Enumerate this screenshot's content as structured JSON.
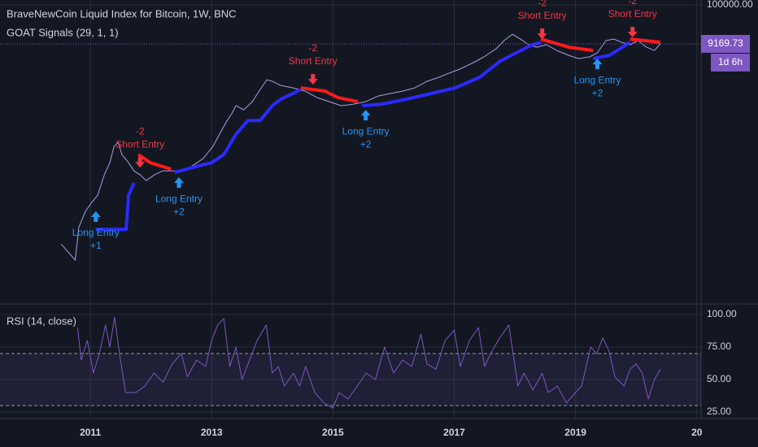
{
  "chart_data": [
    {
      "type": "line",
      "title": "BraveNewCoin Liquid Index for Bitcoin, 1W, BNC",
      "subtitle": "GOAT Signals (29, 1, 1)",
      "log_scale": true,
      "xlim": [
        2009.51,
        2021.07
      ],
      "ylim": [
        0.00115,
        135000
      ],
      "yticks": [
        {
          "value": 100000,
          "label": "100000.00"
        }
      ],
      "last_price": 9169.73,
      "countdown": "1d 6h",
      "last_price_color": "#7e57c2",
      "series": [
        {
          "color": "#a99ee0",
          "x": [
            2010.52,
            2010.75,
            2010.81,
            2010.92,
            2011.01,
            2011.12,
            2011.23,
            2011.32,
            2011.39,
            2011.46,
            2011.52,
            2011.63,
            2011.72,
            2011.82,
            2011.92,
            2012.06,
            2012.19,
            2012.46,
            2012.66,
            2012.86,
            2013.02,
            2013.13,
            2013.24,
            2013.33,
            2013.4,
            2013.53,
            2013.67,
            2013.8,
            2013.91,
            2014.0,
            2014.14,
            2014.34,
            2014.54,
            2014.74,
            2014.94,
            2015.14,
            2015.34,
            2015.54,
            2015.75,
            2015.95,
            2016.15,
            2016.35,
            2016.55,
            2016.75,
            2016.91,
            2017.09,
            2017.29,
            2017.49,
            2017.69,
            2017.82,
            2017.96,
            2018.09,
            2018.23,
            2018.36,
            2018.52,
            2018.69,
            2018.89,
            2019.05,
            2019.23,
            2019.36,
            2019.5,
            2019.63,
            2019.77,
            2019.9,
            2020.03,
            2020.17,
            2020.3,
            2020.4
          ],
          "values": [
            0.043,
            0.016,
            0.12,
            0.32,
            0.52,
            0.86,
            3.0,
            6.3,
            17,
            22,
            10.4,
            6.3,
            3.8,
            3.0,
            2.1,
            3.0,
            3.8,
            3.8,
            4.9,
            8.1,
            17,
            36,
            76,
            126,
            207,
            161,
            266,
            561,
            1020,
            923,
            719,
            619,
            508,
            341,
            266,
            207,
            229,
            266,
            377,
            438,
            508,
            619,
            923,
            1190,
            1520,
            1950,
            2770,
            4120,
            6770,
            11200,
            16600,
            12300,
            8700,
            7480,
            8700,
            6130,
            4550,
            3720,
            4120,
            5290,
            11200,
            12300,
            10000,
            8700,
            11200,
            7480,
            6130,
            9170
          ]
        },
        {
          "color": "#2a2aff",
          "x": [
            2011.09,
            2011.59,
            2011.63,
            2011.72,
            2011.79,
            2012.39,
            2012.73,
            2013.0,
            2013.2,
            2013.4,
            2013.6,
            2013.8,
            2014.0,
            2014.14,
            2014.34,
            2014.47,
            2014.87,
            2015.48,
            2015.81,
            2016.21,
            2016.62,
            2017.02,
            2017.42,
            2017.76,
            2018.02,
            2018.29,
            2018.43,
            2018.89,
            2019.29,
            2019.56,
            2019.77,
            2019.9
          ],
          "values": [
            0.106,
            0.106,
            0.86,
            1.82,
            null,
            3.48,
            4.9,
            6.3,
            10.4,
            36,
            84,
            84,
            207,
            308,
            438,
            561,
            null,
            207,
            229,
            308,
            438,
            619,
            1190,
            3210,
            5290,
            8700,
            10100,
            null,
            3720,
            4550,
            7480,
            10100
          ]
        },
        {
          "color": "#ff1a1a",
          "x": [
            2011.79,
            2011.99,
            2012.33,
            2012.39,
            2014.47,
            2014.87,
            2015.08,
            2015.41,
            2015.48,
            2018.43,
            2018.89,
            2019.29,
            2019.56,
            2019.9,
            2020.4
          ],
          "values": [
            10.4,
            6.3,
            4.25,
            null,
            619,
            508,
            341,
            266,
            null,
            12300,
            7480,
            6130,
            null,
            12300,
            10100
          ]
        }
      ],
      "signals": [
        {
          "text": "Long Entry",
          "count": "+1",
          "direction": "up",
          "color": "#2196f3",
          "x": 2011.09,
          "y": 0.32
        },
        {
          "text": "Short Entry",
          "count": "-2",
          "direction": "down",
          "color": "#f23645",
          "x": 2011.82,
          "y": 6.3
        },
        {
          "text": "Long Entry",
          "count": "+2",
          "direction": "up",
          "color": "#2196f3",
          "x": 2012.46,
          "y": 2.58
        },
        {
          "text": "Short Entry",
          "count": "-2",
          "direction": "down",
          "color": "#f23645",
          "x": 2014.67,
          "y": 1020
        },
        {
          "text": "Long Entry",
          "count": "+2",
          "direction": "up",
          "color": "#2196f3",
          "x": 2015.54,
          "y": 161
        },
        {
          "text": "Short Entry",
          "count": "-2",
          "direction": "down",
          "color": "#f23645",
          "x": 2018.45,
          "y": 16600
        },
        {
          "text": "Long Entry",
          "count": "+2",
          "direction": "up",
          "color": "#2196f3",
          "x": 2019.36,
          "y": 3720
        },
        {
          "text": "Short Entry",
          "count": "-2",
          "direction": "down",
          "color": "#f23645",
          "x": 2019.94,
          "y": 18400
        }
      ]
    },
    {
      "type": "line",
      "title": "RSI (14, close)",
      "xlim": [
        2009.51,
        2021.07
      ],
      "ylim": [
        20,
        107.5
      ],
      "xticks": [
        2011,
        2013,
        2015,
        2017,
        2019,
        {
          "value": 2021,
          "label": "20"
        }
      ],
      "yticks": [
        {
          "value": 100,
          "label": "100.00"
        },
        {
          "value": 75,
          "label": "75.00"
        },
        {
          "value": 50,
          "label": "50.00"
        },
        {
          "value": 25,
          "label": "25.00"
        }
      ],
      "band": [
        30,
        70
      ],
      "band_color": "#7e57c2",
      "series": [
        {
          "color": "#7e57c2",
          "x": [
            2010.79,
            2010.85,
            2010.95,
            2011.05,
            2011.15,
            2011.25,
            2011.32,
            2011.4,
            2011.48,
            2011.58,
            2011.75,
            2011.9,
            2012.05,
            2012.2,
            2012.35,
            2012.5,
            2012.6,
            2012.75,
            2012.9,
            2013.0,
            2013.1,
            2013.2,
            2013.3,
            2013.4,
            2013.5,
            2013.6,
            2013.75,
            2013.9,
            2014.0,
            2014.1,
            2014.2,
            2014.35,
            2014.45,
            2014.55,
            2014.7,
            2014.85,
            2015.0,
            2015.1,
            2015.25,
            2015.4,
            2015.55,
            2015.7,
            2015.85,
            2016.0,
            2016.15,
            2016.3,
            2016.45,
            2016.55,
            2016.7,
            2016.85,
            2017.0,
            2017.1,
            2017.25,
            2017.4,
            2017.5,
            2017.6,
            2017.75,
            2017.9,
            2018.05,
            2018.15,
            2018.3,
            2018.45,
            2018.55,
            2018.7,
            2018.85,
            2019.0,
            2019.1,
            2019.25,
            2019.35,
            2019.45,
            2019.55,
            2019.65,
            2019.8,
            2019.9,
            2020.0,
            2020.1,
            2020.2,
            2020.3,
            2020.4
          ],
          "values": [
            90,
            65,
            80,
            55,
            70,
            92,
            75,
            98,
            70,
            40,
            40,
            45,
            55,
            48,
            62,
            70,
            52,
            65,
            60,
            80,
            92,
            97,
            60,
            75,
            50,
            62,
            80,
            92,
            55,
            60,
            45,
            55,
            45,
            60,
            40,
            32,
            28,
            40,
            35,
            45,
            55,
            50,
            75,
            55,
            65,
            60,
            85,
            62,
            58,
            80,
            88,
            60,
            80,
            90,
            60,
            70,
            82,
            92,
            45,
            55,
            42,
            55,
            40,
            45,
            32,
            40,
            45,
            75,
            70,
            82,
            72,
            52,
            45,
            58,
            62,
            55,
            35,
            50,
            58
          ]
        }
      ]
    }
  ]
}
